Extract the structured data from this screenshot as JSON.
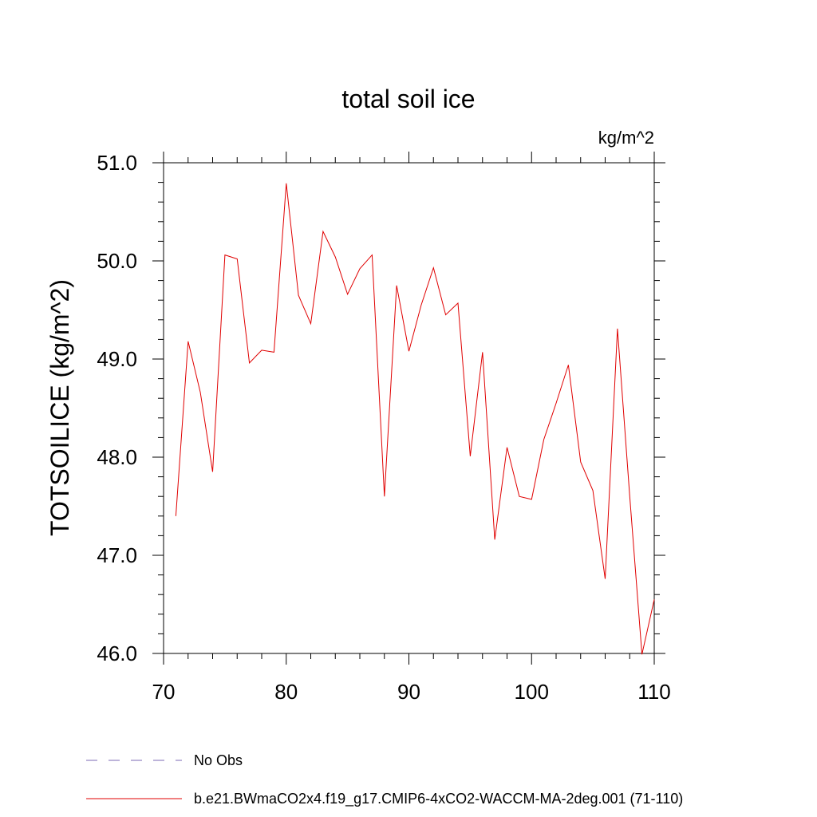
{
  "chart_data": {
    "type": "line",
    "title": "total soil ice",
    "units_label": "kg/m^2",
    "ylabel": "TOTSOILICE  (kg/m^2)",
    "xlabel": "",
    "xlim": [
      70,
      110
    ],
    "ylim": [
      46.0,
      51.0
    ],
    "x_ticks": [
      "70",
      "80",
      "90",
      "100",
      "110"
    ],
    "y_ticks": [
      "46.0",
      "47.0",
      "48.0",
      "49.0",
      "50.0",
      "51.0"
    ],
    "grid": false,
    "legend_position": "bottom-left",
    "series": [
      {
        "name": "No Obs",
        "color": "#7b68b5",
        "dash": "dashed",
        "x": [],
        "values": []
      },
      {
        "name": "b.e21.BWmaCO2x4.f19_g17.CMIP6-4xCO2-WACCM-MA-2deg.001 (71-110)",
        "color": "#e00000",
        "dash": "solid",
        "x": [
          71,
          72,
          73,
          74,
          75,
          76,
          77,
          78,
          79,
          80,
          81,
          82,
          83,
          84,
          85,
          86,
          87,
          88,
          89,
          90,
          91,
          92,
          93,
          94,
          95,
          96,
          97,
          98,
          99,
          100,
          101,
          102,
          103,
          104,
          105,
          106,
          107,
          108,
          109,
          110
        ],
        "values": [
          47.4,
          49.18,
          48.66,
          47.85,
          50.06,
          50.02,
          48.96,
          49.09,
          49.07,
          50.79,
          49.65,
          49.36,
          50.3,
          50.04,
          49.66,
          49.92,
          50.06,
          47.6,
          49.75,
          49.08,
          49.55,
          49.93,
          49.45,
          49.57,
          48.01,
          49.07,
          47.16,
          48.1,
          47.6,
          47.57,
          48.18,
          48.55,
          48.94,
          47.95,
          47.66,
          46.76,
          49.31,
          47.6,
          45.99,
          46.55
        ]
      }
    ]
  }
}
